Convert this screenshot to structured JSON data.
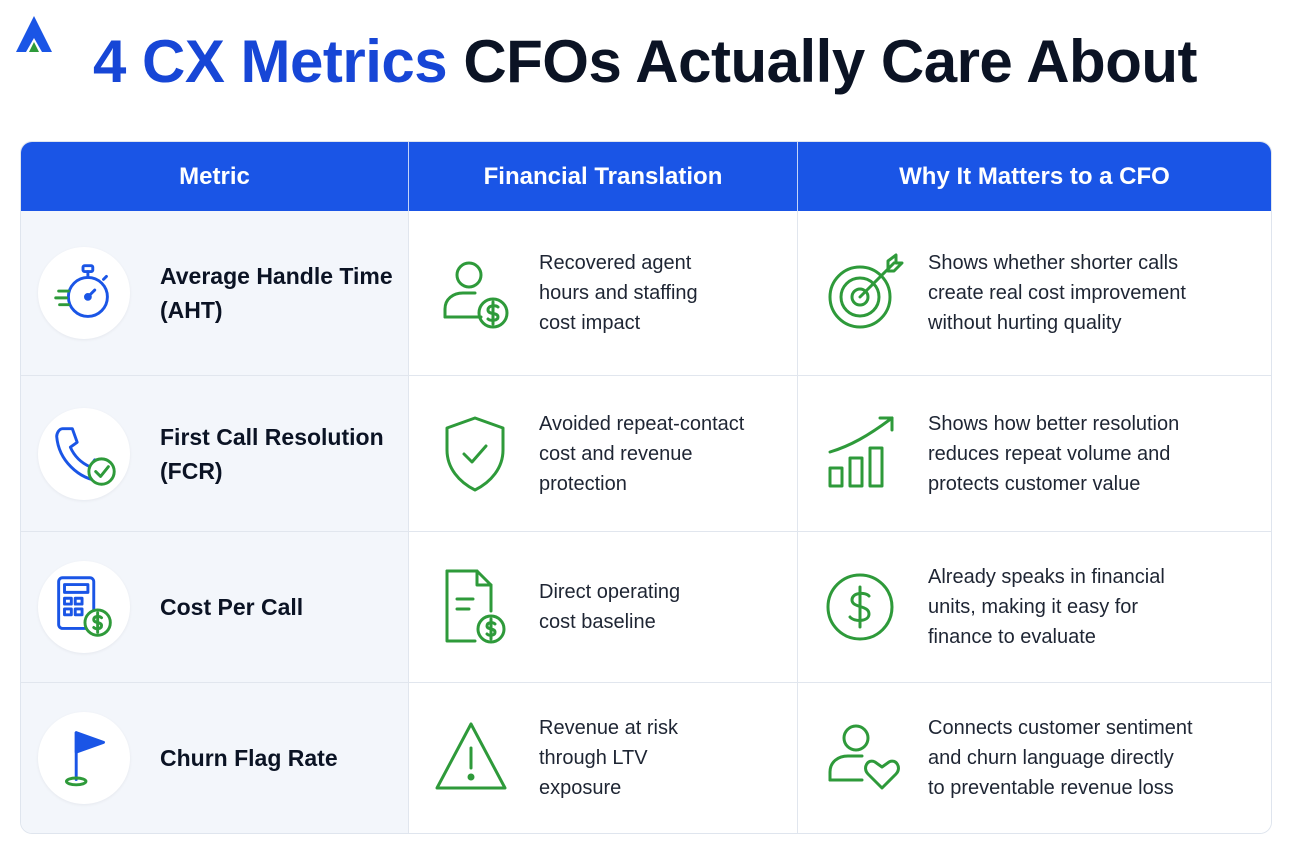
{
  "title": {
    "accent": "4 CX Metrics",
    "rest": "CFOs Actually Care About"
  },
  "colors": {
    "brand_blue": "#1a55e6",
    "title_blue": "#1746d6",
    "icon_green": "#2e9a3a",
    "header_text": "#ffffff"
  },
  "logo": {
    "icon": "triangle-logo-icon"
  },
  "table": {
    "headers": [
      "Metric",
      "Financial Translation",
      "Why It Matters to a CFO"
    ],
    "rows": [
      {
        "metric": "Average Handle Time\n(AHT)",
        "metric_icon": "stopwatch-icon",
        "financial": "Recovered agent\nhours and staffing\ncost impact",
        "financial_icon": "person-dollar-icon",
        "why": "Shows whether shorter calls\ncreate real cost improvement\nwithout hurting quality",
        "why_icon": "target-icon"
      },
      {
        "metric": "First Call Resolution\n(FCR)",
        "metric_icon": "phone-check-icon",
        "financial": "Avoided repeat-contact\ncost and revenue\nprotection",
        "financial_icon": "shield-check-icon",
        "why": "Shows how better resolution\nreduces repeat volume and\nprotects customer value",
        "why_icon": "growth-chart-icon"
      },
      {
        "metric": "Cost Per Call",
        "metric_icon": "calculator-dollar-icon",
        "financial": "Direct operating\ncost baseline",
        "financial_icon": "document-dollar-icon",
        "why": "Already speaks in financial\nunits, making it easy for\nfinance to evaluate",
        "why_icon": "dollar-circle-icon"
      },
      {
        "metric": "Churn Flag Rate",
        "metric_icon": "flag-icon",
        "financial": "Revenue at risk\nthrough LTV\nexposure",
        "financial_icon": "warning-icon",
        "why": "Connects customer sentiment\nand churn language directly\nto preventable revenue loss",
        "why_icon": "person-heart-icon"
      }
    ]
  }
}
